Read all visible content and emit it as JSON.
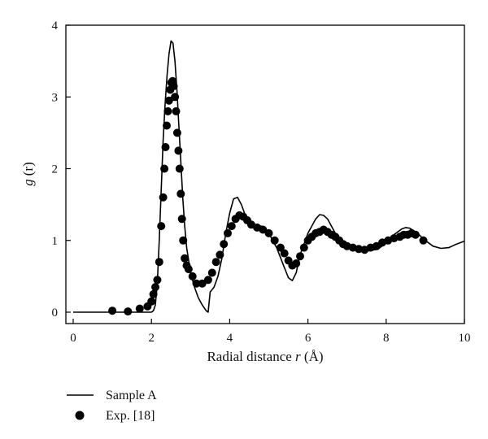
{
  "chart_data": {
    "type": "line",
    "xlabel_text": "Radial distance ",
    "xlabel_var": "r",
    "xlabel_unit": " (Å)",
    "ylabel_text": "g",
    "ylabel_arg": "(r)",
    "xlim": [
      0,
      10
    ],
    "ylim": [
      0,
      4
    ],
    "x_ticks": [
      0,
      2,
      4,
      6,
      8,
      10
    ],
    "y_ticks": [
      0,
      1,
      2,
      3,
      4
    ],
    "x_tick_labels": [
      "0",
      "2",
      "4",
      "6",
      "8",
      "10"
    ],
    "y_tick_labels": [
      "0",
      "1",
      "2",
      "3",
      "4"
    ],
    "grid": false,
    "legend_position": "bottom-left (below plot)",
    "series": [
      {
        "name": "Sample A",
        "style": "line",
        "color": "#000000",
        "points": [
          [
            0.0,
            0.0
          ],
          [
            0.5,
            0.0
          ],
          [
            1.0,
            0.0
          ],
          [
            1.5,
            0.0
          ],
          [
            1.8,
            0.0
          ],
          [
            2.0,
            0.0
          ],
          [
            2.05,
            0.02
          ],
          [
            2.1,
            0.1
          ],
          [
            2.15,
            0.4
          ],
          [
            2.2,
            1.0
          ],
          [
            2.25,
            1.7
          ],
          [
            2.3,
            2.4
          ],
          [
            2.35,
            2.9
          ],
          [
            2.4,
            3.3
          ],
          [
            2.45,
            3.6
          ],
          [
            2.5,
            3.78
          ],
          [
            2.55,
            3.75
          ],
          [
            2.6,
            3.5
          ],
          [
            2.65,
            3.1
          ],
          [
            2.7,
            2.6
          ],
          [
            2.75,
            2.1
          ],
          [
            2.8,
            1.6
          ],
          [
            2.85,
            1.2
          ],
          [
            2.9,
            0.9
          ],
          [
            3.0,
            0.55
          ],
          [
            3.1,
            0.35
          ],
          [
            3.2,
            0.2
          ],
          [
            3.3,
            0.1
          ],
          [
            3.4,
            0.02
          ],
          [
            3.45,
            0.0
          ],
          [
            3.5,
            0.28
          ],
          [
            3.6,
            0.35
          ],
          [
            3.7,
            0.5
          ],
          [
            3.8,
            0.75
          ],
          [
            3.9,
            1.1
          ],
          [
            4.0,
            1.38
          ],
          [
            4.1,
            1.58
          ],
          [
            4.2,
            1.6
          ],
          [
            4.3,
            1.5
          ],
          [
            4.4,
            1.35
          ],
          [
            4.6,
            1.2
          ],
          [
            4.8,
            1.2
          ],
          [
            4.9,
            1.18
          ],
          [
            5.0,
            1.1
          ],
          [
            5.2,
            0.9
          ],
          [
            5.4,
            0.62
          ],
          [
            5.5,
            0.48
          ],
          [
            5.6,
            0.44
          ],
          [
            5.7,
            0.55
          ],
          [
            5.8,
            0.8
          ],
          [
            6.0,
            1.1
          ],
          [
            6.2,
            1.3
          ],
          [
            6.3,
            1.36
          ],
          [
            6.4,
            1.35
          ],
          [
            6.5,
            1.3
          ],
          [
            6.6,
            1.2
          ],
          [
            6.8,
            1.0
          ],
          [
            7.0,
            0.9
          ],
          [
            7.2,
            0.87
          ],
          [
            7.5,
            0.85
          ],
          [
            7.8,
            0.88
          ],
          [
            8.0,
            0.97
          ],
          [
            8.2,
            1.08
          ],
          [
            8.4,
            1.16
          ],
          [
            8.5,
            1.18
          ],
          [
            8.6,
            1.17
          ],
          [
            8.8,
            1.1
          ],
          [
            9.0,
            1.0
          ],
          [
            9.2,
            0.92
          ],
          [
            9.4,
            0.89
          ],
          [
            9.6,
            0.9
          ],
          [
            9.8,
            0.95
          ],
          [
            10.0,
            0.99
          ]
        ]
      },
      {
        "name": "Exp. [18]",
        "style": "markers",
        "color": "#000000",
        "points": [
          [
            1.0,
            0.02
          ],
          [
            1.4,
            0.01
          ],
          [
            1.7,
            0.05
          ],
          [
            1.9,
            0.08
          ],
          [
            2.0,
            0.15
          ],
          [
            2.05,
            0.25
          ],
          [
            2.1,
            0.35
          ],
          [
            2.15,
            0.45
          ],
          [
            2.2,
            0.7
          ],
          [
            2.25,
            1.2
          ],
          [
            2.3,
            1.6
          ],
          [
            2.33,
            2.0
          ],
          [
            2.36,
            2.3
          ],
          [
            2.39,
            2.6
          ],
          [
            2.42,
            2.8
          ],
          [
            2.45,
            2.95
          ],
          [
            2.48,
            3.1
          ],
          [
            2.51,
            3.2
          ],
          [
            2.54,
            3.22
          ],
          [
            2.57,
            3.15
          ],
          [
            2.6,
            3.0
          ],
          [
            2.63,
            2.8
          ],
          [
            2.66,
            2.5
          ],
          [
            2.69,
            2.25
          ],
          [
            2.72,
            2.0
          ],
          [
            2.75,
            1.65
          ],
          [
            2.78,
            1.3
          ],
          [
            2.81,
            1.0
          ],
          [
            2.85,
            0.75
          ],
          [
            2.9,
            0.65
          ],
          [
            2.95,
            0.6
          ],
          [
            3.05,
            0.5
          ],
          [
            3.15,
            0.4
          ],
          [
            3.3,
            0.4
          ],
          [
            3.45,
            0.45
          ],
          [
            3.55,
            0.55
          ],
          [
            3.65,
            0.7
          ],
          [
            3.75,
            0.8
          ],
          [
            3.85,
            0.95
          ],
          [
            3.95,
            1.1
          ],
          [
            4.05,
            1.2
          ],
          [
            4.15,
            1.3
          ],
          [
            4.25,
            1.35
          ],
          [
            4.35,
            1.33
          ],
          [
            4.45,
            1.28
          ],
          [
            4.55,
            1.22
          ],
          [
            4.7,
            1.18
          ],
          [
            4.85,
            1.15
          ],
          [
            5.0,
            1.1
          ],
          [
            5.15,
            1.0
          ],
          [
            5.3,
            0.9
          ],
          [
            5.4,
            0.82
          ],
          [
            5.5,
            0.72
          ],
          [
            5.6,
            0.65
          ],
          [
            5.7,
            0.68
          ],
          [
            5.8,
            0.78
          ],
          [
            5.9,
            0.9
          ],
          [
            6.0,
            1.0
          ],
          [
            6.1,
            1.05
          ],
          [
            6.2,
            1.1
          ],
          [
            6.3,
            1.12
          ],
          [
            6.4,
            1.15
          ],
          [
            6.5,
            1.12
          ],
          [
            6.6,
            1.08
          ],
          [
            6.7,
            1.05
          ],
          [
            6.8,
            1.0
          ],
          [
            6.9,
            0.95
          ],
          [
            7.0,
            0.92
          ],
          [
            7.15,
            0.9
          ],
          [
            7.3,
            0.88
          ],
          [
            7.45,
            0.87
          ],
          [
            7.6,
            0.9
          ],
          [
            7.75,
            0.92
          ],
          [
            7.9,
            0.97
          ],
          [
            8.05,
            1.0
          ],
          [
            8.2,
            1.03
          ],
          [
            8.35,
            1.05
          ],
          [
            8.45,
            1.08
          ],
          [
            8.55,
            1.08
          ],
          [
            8.65,
            1.1
          ],
          [
            8.75,
            1.08
          ],
          [
            8.95,
            1.0
          ]
        ]
      }
    ]
  },
  "legend": {
    "items": [
      {
        "label": "Sample A",
        "symbol": "line"
      },
      {
        "label": "Exp. [18]",
        "symbol": "marker"
      }
    ]
  }
}
